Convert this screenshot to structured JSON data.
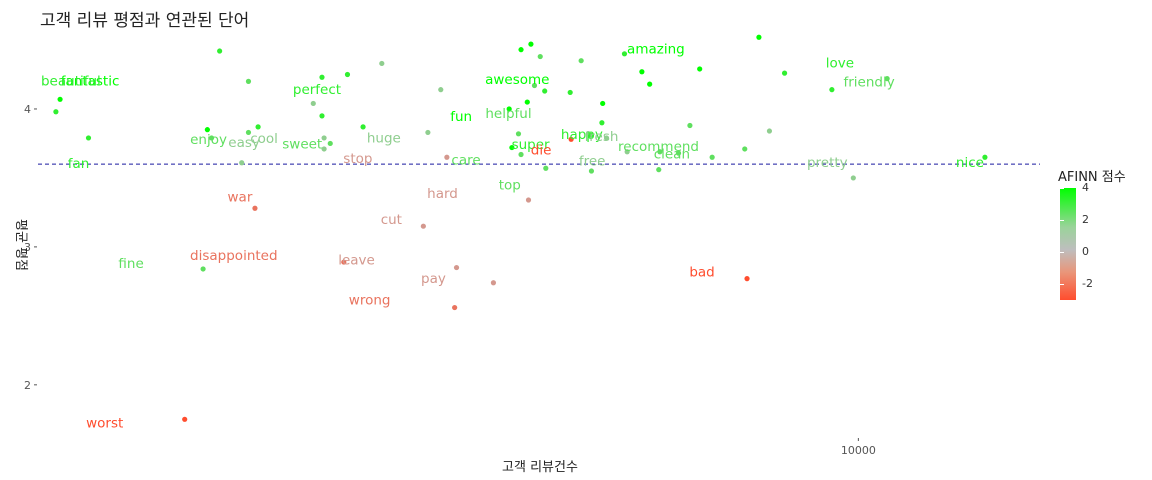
{
  "chart_data": {
    "type": "scatter",
    "title": "고객 리뷰 평점과 연관된 단어",
    "xlabel": "고객 리뷰건수",
    "ylabel": "평균 평점",
    "x_scale": "log10",
    "xlim": [
      70,
      30000
    ],
    "ylim": [
      1.6,
      4.5
    ],
    "x_ticks": [
      10000
    ],
    "x_tick_labels": [
      "10000"
    ],
    "y_ticks": [
      2,
      3,
      4
    ],
    "y_tick_labels": [
      "2",
      "3",
      "4"
    ],
    "reference_line_y": 3.6,
    "color_legend": {
      "title": "AFINN 점수",
      "ticks": [
        4,
        2,
        0,
        -2
      ],
      "tick_labels": [
        "4",
        "2",
        "0",
        "-2"
      ],
      "range": [
        -3,
        4
      ],
      "low_color": "#ff4d2e",
      "mid_color": "#bebebe",
      "high_color": "#00ff00"
    },
    "points": [
      {
        "word": "fantastic",
        "x": 80,
        "y": 4.07,
        "afinn": 4
      },
      {
        "word": "beautiful",
        "x": 78,
        "y": 3.98,
        "afinn": 3
      },
      {
        "word": "perfect",
        "x": 390,
        "y": 3.95,
        "afinn": 3
      },
      {
        "word": "awesome",
        "x": 1350,
        "y": 4.05,
        "afinn": 4
      },
      {
        "word": "amazing",
        "x": 2700,
        "y": 4.27,
        "afinn": 4
      },
      {
        "word": "helpful",
        "x": 1280,
        "y": 3.82,
        "afinn": 2
      },
      {
        "word": "fun",
        "x": 1210,
        "y": 4.0,
        "afinn": 4
      },
      {
        "word": "easy",
        "x": 395,
        "y": 3.71,
        "afinn": 1
      },
      {
        "word": "super",
        "x": 1980,
        "y": 3.81,
        "afinn": 3
      },
      {
        "word": "happy",
        "x": 2120,
        "y": 3.9,
        "afinn": 3
      },
      {
        "word": "recommend",
        "x": 3370,
        "y": 3.68,
        "afinn": 2
      },
      {
        "word": "love",
        "x": 8520,
        "y": 4.14,
        "afinn": 3
      },
      {
        "word": "friendly",
        "x": 11900,
        "y": 4.22,
        "afinn": 2
      },
      {
        "word": "enjoy",
        "x": 200,
        "y": 3.79,
        "afinn": 2
      },
      {
        "word": "cool",
        "x": 395,
        "y": 3.79,
        "afinn": 1
      },
      {
        "word": "sweet",
        "x": 410,
        "y": 3.75,
        "afinn": 2
      },
      {
        "word": "fan",
        "x": 95,
        "y": 3.79,
        "afinn": 3
      },
      {
        "word": "huge",
        "x": 740,
        "y": 3.83,
        "afinn": 1
      },
      {
        "word": "stop",
        "x": 830,
        "y": 3.65,
        "afinn": -1
      },
      {
        "word": "die",
        "x": 1760,
        "y": 3.78,
        "afinn": -3
      },
      {
        "word": "fresh",
        "x": 2180,
        "y": 3.79,
        "afinn": 1
      },
      {
        "word": "free",
        "x": 2470,
        "y": 3.69,
        "afinn": 1
      },
      {
        "word": "clean",
        "x": 3010,
        "y": 3.69,
        "afinn": 2
      },
      {
        "word": "nice",
        "x": 21500,
        "y": 3.65,
        "afinn": 3
      },
      {
        "word": "care",
        "x": 1300,
        "y": 3.67,
        "afinn": 2
      },
      {
        "word": "top",
        "x": 1510,
        "y": 3.57,
        "afinn": 2
      },
      {
        "word": "war",
        "x": 260,
        "y": 3.28,
        "afinn": -2
      },
      {
        "word": "cut",
        "x": 720,
        "y": 3.15,
        "afinn": -1
      },
      {
        "word": "hard",
        "x": 1360,
        "y": 3.34,
        "afinn": -1
      },
      {
        "word": "pretty",
        "x": 9700,
        "y": 3.5,
        "afinn": 1
      },
      {
        "word": "leave",
        "x": 880,
        "y": 2.85,
        "afinn": -1
      },
      {
        "word": "disappointed",
        "x": 445,
        "y": 2.89,
        "afinn": -2
      },
      {
        "word": "fine",
        "x": 190,
        "y": 2.84,
        "afinn": 2
      },
      {
        "word": "wrong",
        "x": 870,
        "y": 2.56,
        "afinn": -2
      },
      {
        "word": "pay",
        "x": 1100,
        "y": 2.74,
        "afinn": -1
      },
      {
        "word": "bad",
        "x": 5100,
        "y": 2.77,
        "afinn": -3
      },
      {
        "word": "worst",
        "x": 170,
        "y": 1.75,
        "afinn": -3
      }
    ],
    "extra_points": [
      {
        "x": 250,
        "y": 3.83,
        "afinn": 2
      },
      {
        "x": 265,
        "y": 3.87,
        "afinn": 3
      },
      {
        "x": 195,
        "y": 3.85,
        "afinn": 4
      },
      {
        "x": 240,
        "y": 3.61,
        "afinn": 1
      },
      {
        "x": 370,
        "y": 4.04,
        "afinn": 1
      },
      {
        "x": 390,
        "y": 4.23,
        "afinn": 3
      },
      {
        "x": 455,
        "y": 4.25,
        "afinn": 3
      },
      {
        "x": 560,
        "y": 4.33,
        "afinn": 1
      },
      {
        "x": 800,
        "y": 4.14,
        "afinn": 1
      },
      {
        "x": 1410,
        "y": 4.17,
        "afinn": 2
      },
      {
        "x": 1870,
        "y": 4.35,
        "afinn": 2
      },
      {
        "x": 2130,
        "y": 4.04,
        "afinn": 4
      },
      {
        "x": 2430,
        "y": 4.4,
        "afinn": 3
      },
      {
        "x": 2830,
        "y": 4.18,
        "afinn": 4
      },
      {
        "x": 500,
        "y": 3.87,
        "afinn": 3
      },
      {
        "x": 1230,
        "y": 3.72,
        "afinn": 4
      },
      {
        "x": 2990,
        "y": 3.56,
        "afinn": 2
      },
      {
        "x": 1990,
        "y": 3.55,
        "afinn": 2
      },
      {
        "x": 6400,
        "y": 4.26,
        "afinn": 3
      },
      {
        "x": 3610,
        "y": 3.88,
        "afinn": 2
      },
      {
        "x": 4130,
        "y": 3.65,
        "afinn": 2
      },
      {
        "x": 5030,
        "y": 3.71,
        "afinn": 2
      },
      {
        "x": 5840,
        "y": 3.84,
        "afinn": 1
      },
      {
        "x": 1500,
        "y": 4.13,
        "afinn": 3
      },
      {
        "x": 3830,
        "y": 4.29,
        "afinn": 4
      },
      {
        "x": 1300,
        "y": 4.43,
        "afinn": 4
      },
      {
        "x": 1380,
        "y": 4.47,
        "afinn": 4
      },
      {
        "x": 1460,
        "y": 4.38,
        "afinn": 2
      },
      {
        "x": 210,
        "y": 4.42,
        "afinn": 3
      },
      {
        "x": 250,
        "y": 4.2,
        "afinn": 2
      },
      {
        "x": 1750,
        "y": 4.12,
        "afinn": 3
      },
      {
        "x": 5480,
        "y": 4.52,
        "afinn": 4
      }
    ]
  }
}
